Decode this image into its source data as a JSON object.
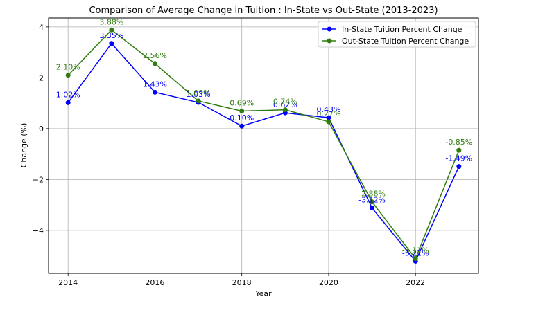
{
  "chart_data": {
    "type": "line",
    "title": "Comparison of Average Change in Tuition : In-State vs Out-State (2013-2023)",
    "xlabel": "Year",
    "ylabel": "Change (%)",
    "x": [
      2014,
      2015,
      2016,
      2017,
      2018,
      2019,
      2020,
      2021,
      2022,
      2023
    ],
    "xlim": [
      2013.55,
      2023.45
    ],
    "ylim": [
      -5.69,
      4.35
    ],
    "xticks": [
      2014,
      2016,
      2018,
      2020,
      2022
    ],
    "yticks": [
      -4,
      -2,
      0,
      2,
      4
    ],
    "grid": true,
    "legend_position": "top-right",
    "series": [
      {
        "name": "In-State Tuition Percent Change",
        "color": "#0000ff",
        "values": [
          1.02,
          3.35,
          1.43,
          1.03,
          0.1,
          0.62,
          0.43,
          -3.12,
          -5.21,
          -1.49
        ],
        "labels": [
          "1.02%",
          "3.35%",
          "1.43%",
          "1.03%",
          "0.10%",
          "0.62%",
          "0.43%",
          "-3.12%",
          "-5.21%",
          "-1.49%"
        ]
      },
      {
        "name": "Out-State Tuition Percent Change",
        "color": "#2e7d0e",
        "values": [
          2.1,
          3.88,
          2.56,
          1.09,
          0.69,
          0.74,
          0.27,
          -2.88,
          -5.11,
          -0.85
        ],
        "labels": [
          "2.10%",
          "3.88%",
          "2.56%",
          "1.09%",
          "0.69%",
          "0.74%",
          "0.27%",
          "-2.88%",
          "-5.11%",
          "-0.85%"
        ]
      }
    ]
  }
}
